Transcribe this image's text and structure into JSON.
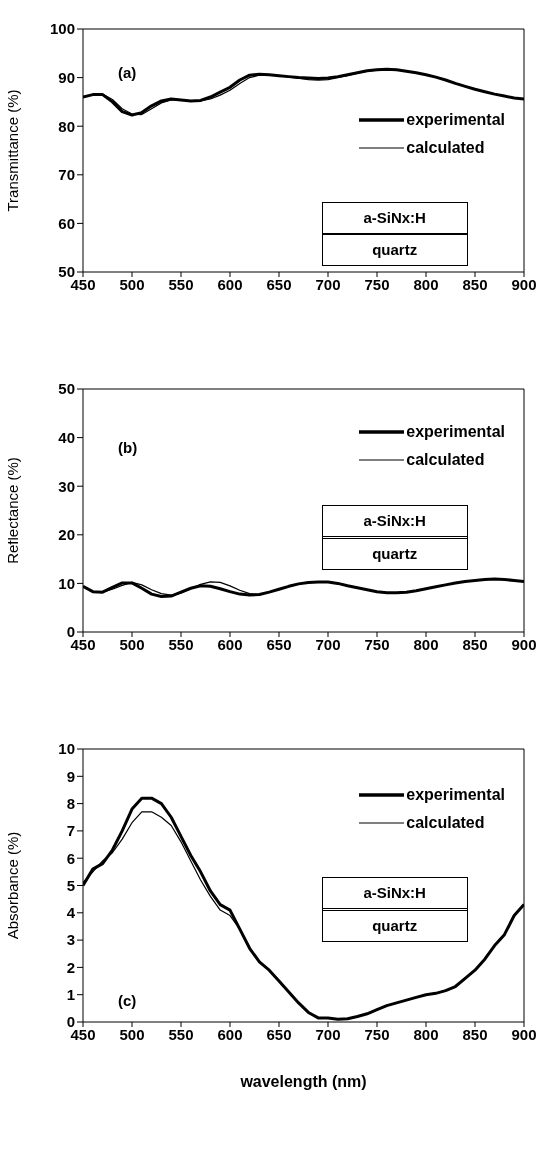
{
  "chart_data": [
    {
      "type": "line",
      "ylabel": "Transmittance (%)",
      "annotations": [
        "(a)",
        "a-SiNx:H",
        "quartz"
      ],
      "x": [
        450,
        460,
        470,
        480,
        490,
        500,
        510,
        520,
        530,
        540,
        550,
        560,
        570,
        580,
        590,
        600,
        610,
        620,
        630,
        640,
        650,
        660,
        670,
        680,
        690,
        700,
        710,
        720,
        730,
        740,
        750,
        760,
        770,
        780,
        790,
        800,
        810,
        820,
        830,
        840,
        850,
        860,
        870,
        880,
        890,
        900
      ],
      "xlim": [
        450,
        900
      ],
      "xticks": [
        450,
        500,
        550,
        600,
        650,
        700,
        750,
        800,
        850,
        900
      ],
      "ylim": [
        50,
        100
      ],
      "yticks": [
        50,
        60,
        70,
        80,
        90,
        100
      ],
      "legend": "top right",
      "series": [
        {
          "name": "experimental",
          "color": "#000000",
          "values": [
            86,
            86.5,
            86.5,
            85,
            83,
            82.3,
            82.8,
            84.2,
            85.2,
            85.6,
            85.4,
            85.2,
            85.3,
            86,
            87,
            88,
            89.5,
            90.5,
            90.7,
            90.6,
            90.4,
            90.2,
            90,
            89.9,
            89.8,
            89.9,
            90.2,
            90.6,
            91,
            91.4,
            91.6,
            91.7,
            91.6,
            91.3,
            91,
            90.6,
            90.1,
            89.5,
            88.8,
            88.2,
            87.6,
            87.1,
            86.6,
            86.2,
            85.8,
            85.6
          ]
        },
        {
          "name": "calculated",
          "color": "#000000",
          "values": [
            86,
            86.5,
            86.6,
            85.5,
            83.6,
            82.5,
            82.4,
            83.6,
            84.8,
            85.4,
            85.4,
            85.2,
            85.2,
            85.6,
            86.4,
            87.4,
            88.8,
            90,
            90.5,
            90.6,
            90.4,
            90.1,
            89.9,
            89.6,
            89.5,
            89.6,
            90,
            90.4,
            90.9,
            91.3,
            91.6,
            91.7,
            91.6,
            91.3,
            91,
            90.6,
            90.1,
            89.5,
            88.8,
            88.2,
            87.6,
            87.1,
            86.6,
            86.2,
            85.8,
            85.6
          ]
        }
      ]
    },
    {
      "type": "line",
      "ylabel": "Reflectance (%)",
      "annotations": [
        "(b)",
        "a-SiNx:H",
        "quartz"
      ],
      "x": [
        450,
        460,
        470,
        480,
        490,
        500,
        510,
        520,
        530,
        540,
        550,
        560,
        570,
        580,
        590,
        600,
        610,
        620,
        630,
        640,
        650,
        660,
        670,
        680,
        690,
        700,
        710,
        720,
        730,
        740,
        750,
        760,
        770,
        780,
        790,
        800,
        810,
        820,
        830,
        840,
        850,
        860,
        870,
        880,
        890,
        900
      ],
      "xlim": [
        450,
        900
      ],
      "xticks": [
        450,
        500,
        550,
        600,
        650,
        700,
        750,
        800,
        850,
        900
      ],
      "ylim": [
        0,
        50
      ],
      "yticks": [
        0,
        10,
        20,
        30,
        40,
        50
      ],
      "legend": "top right",
      "series": [
        {
          "name": "experimental",
          "color": "#000000",
          "values": [
            9.4,
            8.3,
            8.2,
            9.2,
            10.1,
            10.1,
            9,
            7.8,
            7.3,
            7.4,
            8.2,
            9,
            9.5,
            9.4,
            8.9,
            8.3,
            7.8,
            7.6,
            7.7,
            8.2,
            8.8,
            9.4,
            9.9,
            10.2,
            10.3,
            10.3,
            10,
            9.5,
            9.1,
            8.7,
            8.3,
            8.1,
            8.1,
            8.2,
            8.5,
            8.9,
            9.3,
            9.7,
            10.1,
            10.4,
            10.6,
            10.8,
            10.9,
            10.8,
            10.6,
            10.4
          ]
        },
        {
          "name": "calculated",
          "color": "#000000",
          "values": [
            9.4,
            8.3,
            8.2,
            8.8,
            9.6,
            10.2,
            9.7,
            8.7,
            7.9,
            7.6,
            8,
            8.9,
            9.8,
            10.3,
            10.2,
            9.5,
            8.6,
            7.9,
            7.7,
            8.2,
            8.8,
            9.4,
            9.9,
            10.2,
            10.3,
            10.3,
            10,
            9.5,
            9.1,
            8.7,
            8.3,
            8.1,
            8.1,
            8.2,
            8.5,
            8.9,
            9.3,
            9.7,
            10.1,
            10.4,
            10.6,
            10.8,
            10.9,
            10.8,
            10.6,
            10.4
          ]
        }
      ]
    },
    {
      "type": "line",
      "xlabel": "wavelength (nm)",
      "ylabel": "Absorbance (%)",
      "annotations": [
        "(c)",
        "a-SiNx:H",
        "quartz"
      ],
      "x": [
        450,
        460,
        470,
        480,
        490,
        500,
        510,
        520,
        530,
        540,
        550,
        560,
        570,
        580,
        590,
        600,
        610,
        620,
        630,
        640,
        650,
        660,
        670,
        680,
        690,
        700,
        710,
        720,
        730,
        740,
        750,
        760,
        770,
        780,
        790,
        800,
        810,
        820,
        830,
        840,
        850,
        860,
        870,
        880,
        890,
        900
      ],
      "xlim": [
        450,
        900
      ],
      "xticks": [
        450,
        500,
        550,
        600,
        650,
        700,
        750,
        800,
        850,
        900
      ],
      "ylim": [
        0,
        10
      ],
      "yticks": [
        0,
        1,
        2,
        3,
        4,
        5,
        6,
        7,
        8,
        9,
        10
      ],
      "legend": "top right",
      "series": [
        {
          "name": "experimental",
          "color": "#000000",
          "values": [
            5,
            5.6,
            5.8,
            6.3,
            7,
            7.8,
            8.2,
            8.2,
            8,
            7.5,
            6.8,
            6.1,
            5.5,
            4.8,
            4.3,
            4.1,
            3.4,
            2.7,
            2.2,
            1.9,
            1.5,
            1.1,
            0.7,
            0.35,
            0.15,
            0.15,
            0.1,
            0.12,
            0.2,
            0.3,
            0.45,
            0.6,
            0.7,
            0.8,
            0.9,
            1,
            1.05,
            1.15,
            1.3,
            1.6,
            1.9,
            2.3,
            2.8,
            3.2,
            3.9,
            4.3
          ]
        },
        {
          "name": "calculated",
          "color": "#000000",
          "values": [
            5.1,
            5.5,
            5.9,
            6.2,
            6.7,
            7.3,
            7.7,
            7.7,
            7.5,
            7.2,
            6.6,
            5.9,
            5.2,
            4.6,
            4.1,
            3.9,
            3.4,
            2.7,
            2.2,
            1.9,
            1.5,
            1.1,
            0.7,
            0.35,
            0.15,
            0.15,
            0.1,
            0.12,
            0.2,
            0.3,
            0.45,
            0.6,
            0.7,
            0.8,
            0.9,
            1,
            1.05,
            1.15,
            1.3,
            1.6,
            1.9,
            2.3,
            2.8,
            3.2,
            3.9,
            4.3
          ]
        }
      ]
    }
  ]
}
